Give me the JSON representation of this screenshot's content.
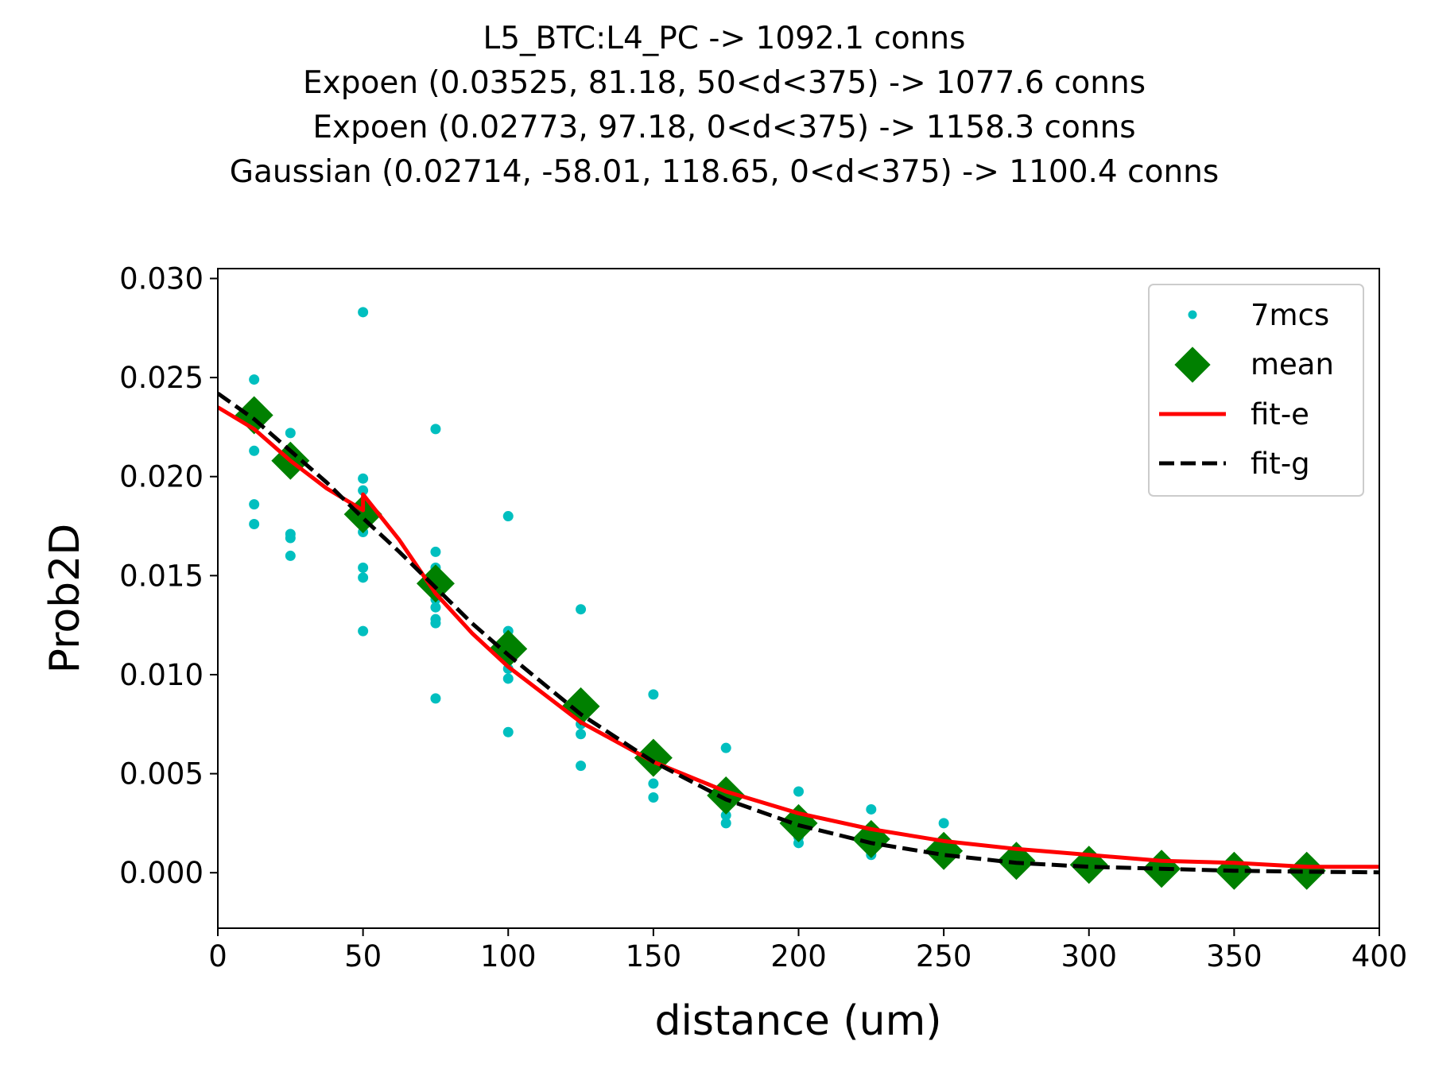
{
  "chart_data": {
    "type": "scatter",
    "title_lines": [
      "L5_BTC:L4_PC -> 1092.1 conns",
      "Expoen (0.03525, 81.18, 50<d<375) -> 1077.6 conns",
      "Expoen (0.02773, 97.18, 0<d<375) -> 1158.3 conns",
      "Gaussian (0.02714, -58.01, 118.65, 0<d<375) -> 1100.4 conns"
    ],
    "xlabel": "distance (um)",
    "ylabel": "Prob2D",
    "xlim": [
      0,
      400
    ],
    "ylim": [
      -0.0028,
      0.0305
    ],
    "xticks": [
      0,
      50,
      100,
      150,
      200,
      250,
      300,
      350,
      400
    ],
    "xtick_labels": [
      "0",
      "50",
      "100",
      "150",
      "200",
      "250",
      "300",
      "350",
      "400"
    ],
    "yticks": [
      0.0,
      0.005,
      0.01,
      0.015,
      0.02,
      0.025,
      0.03
    ],
    "ytick_labels": [
      "0.000",
      "0.005",
      "0.010",
      "0.015",
      "0.020",
      "0.025",
      "0.030"
    ],
    "grid": false,
    "legend": {
      "position": "top-right",
      "entries": [
        "7mcs",
        "mean",
        "fit-e",
        "fit-g"
      ]
    },
    "colors": {
      "scatter": "#00bfbf",
      "mean": "#008000",
      "fit_e": "#ff0000",
      "fit_g": "#000000"
    },
    "series": [
      {
        "name": "7mcs",
        "kind": "scatter",
        "x": [
          12.5,
          12.5,
          12.5,
          12.5,
          12.5,
          12.5,
          25,
          25,
          25,
          25,
          25,
          25,
          25,
          50,
          50,
          50,
          50,
          50,
          50,
          50,
          50,
          75,
          75,
          75,
          75,
          75,
          75,
          75,
          75,
          100,
          100,
          100,
          100,
          100,
          100,
          125,
          125,
          125,
          125,
          125,
          150,
          150,
          150,
          150,
          150,
          175,
          175,
          175,
          175,
          200,
          200,
          200,
          200,
          225,
          225,
          225,
          225,
          250,
          250,
          250,
          250,
          275,
          275,
          275,
          300,
          300,
          300,
          325,
          325,
          325,
          350,
          350,
          350,
          375,
          375,
          375
        ],
        "y": [
          0.0249,
          0.0232,
          0.0225,
          0.0213,
          0.0186,
          0.0176,
          0.0222,
          0.0212,
          0.0205,
          0.0171,
          0.0169,
          0.016,
          0.0209,
          0.0283,
          0.0199,
          0.0193,
          0.0172,
          0.0154,
          0.0149,
          0.0122,
          0.0181,
          0.0224,
          0.0162,
          0.0154,
          0.0138,
          0.0134,
          0.0128,
          0.0126,
          0.0088,
          0.018,
          0.0122,
          0.0117,
          0.0103,
          0.0098,
          0.0071,
          0.0133,
          0.0085,
          0.0075,
          0.007,
          0.0054,
          0.009,
          0.006,
          0.0055,
          0.0045,
          0.0038,
          0.0063,
          0.0035,
          0.0029,
          0.0025,
          0.0041,
          0.0024,
          0.0018,
          0.0015,
          0.0032,
          0.0018,
          0.0012,
          0.0009,
          0.0025,
          0.0012,
          0.0009,
          0.0006,
          0.001,
          0.0006,
          0.0003,
          0.0006,
          0.0004,
          0.0002,
          0.0003,
          0.0002,
          0.0001,
          0.0002,
          0.0001,
          0.0,
          0.0002,
          0.0001,
          0.0
        ]
      },
      {
        "name": "mean",
        "kind": "marker",
        "x": [
          12.5,
          25,
          50,
          75,
          100,
          125,
          150,
          175,
          200,
          225,
          250,
          275,
          300,
          325,
          350,
          375
        ],
        "y": [
          0.0231,
          0.0208,
          0.0181,
          0.0146,
          0.0113,
          0.0084,
          0.0058,
          0.0039,
          0.0025,
          0.0017,
          0.0011,
          0.0006,
          0.0004,
          0.0002,
          0.0001,
          0.0001
        ]
      },
      {
        "name": "fit-e",
        "kind": "line",
        "x": [
          0,
          12.5,
          25,
          37.5,
          50,
          50.01,
          62.5,
          75,
          87.5,
          100,
          125,
          150,
          175,
          200,
          225,
          250,
          275,
          300,
          325,
          350,
          375,
          400
        ],
        "y": [
          0.0235,
          0.0224,
          0.0208,
          0.0194,
          0.0183,
          0.0191,
          0.0168,
          0.0141,
          0.0121,
          0.0104,
          0.0076,
          0.0056,
          0.0041,
          0.003,
          0.0022,
          0.0016,
          0.0012,
          0.0009,
          0.0006,
          0.0005,
          0.0003,
          0.0003
        ]
      },
      {
        "name": "fit-g",
        "kind": "dashed-line",
        "x": [
          0,
          12.5,
          25,
          37.5,
          50,
          62.5,
          75,
          87.5,
          100,
          125,
          150,
          175,
          200,
          225,
          250,
          275,
          300,
          325,
          350,
          375,
          400
        ],
        "y": [
          0.0242,
          0.0229,
          0.0213,
          0.0197,
          0.0179,
          0.0162,
          0.0144,
          0.0126,
          0.011,
          0.008,
          0.0056,
          0.0037,
          0.0024,
          0.0015,
          0.0009,
          0.0005,
          0.0003,
          0.0002,
          0.0001,
          5e-05,
          2e-05
        ]
      }
    ]
  }
}
